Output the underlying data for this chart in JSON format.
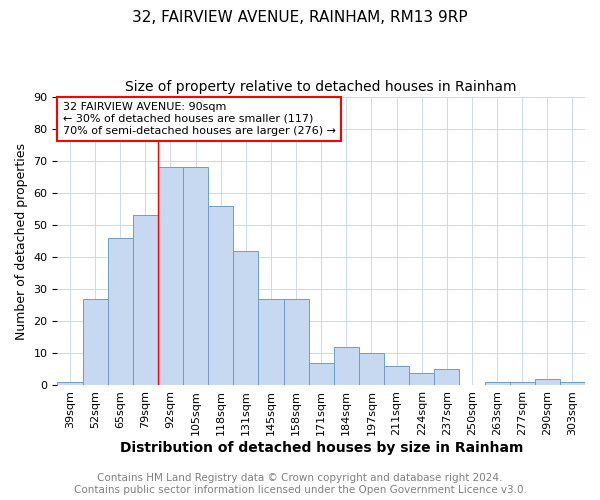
{
  "title": "32, FAIRVIEW AVENUE, RAINHAM, RM13 9RP",
  "subtitle": "Size of property relative to detached houses in Rainham",
  "xlabel": "Distribution of detached houses by size in Rainham",
  "ylabel": "Number of detached properties",
  "categories": [
    "39sqm",
    "52sqm",
    "65sqm",
    "79sqm",
    "92sqm",
    "105sqm",
    "118sqm",
    "131sqm",
    "145sqm",
    "158sqm",
    "171sqm",
    "184sqm",
    "197sqm",
    "211sqm",
    "224sqm",
    "237sqm",
    "250sqm",
    "263sqm",
    "277sqm",
    "290sqm",
    "303sqm"
  ],
  "values": [
    1,
    27,
    46,
    53,
    68,
    68,
    56,
    42,
    27,
    27,
    7,
    12,
    10,
    6,
    4,
    5,
    0,
    1,
    1,
    2,
    1
  ],
  "bar_color": "#c6d9f0",
  "bar_edge_color": "#6b9ec8",
  "red_line_index": 4,
  "annotation_text": "32 FAIRVIEW AVENUE: 90sqm\n← 30% of detached houses are smaller (117)\n70% of semi-detached houses are larger (276) →",
  "annotation_box_color": "white",
  "annotation_box_edge_color": "red",
  "footer_text": "Contains HM Land Registry data © Crown copyright and database right 2024.\nContains public sector information licensed under the Open Government Licence v3.0.",
  "ylim": [
    0,
    90
  ],
  "yticks": [
    0,
    10,
    20,
    30,
    40,
    50,
    60,
    70,
    80,
    90
  ],
  "title_fontsize": 11,
  "subtitle_fontsize": 10,
  "ylabel_fontsize": 9,
  "xlabel_fontsize": 10,
  "tick_fontsize": 8,
  "annotation_fontsize": 8,
  "footer_fontsize": 7.5,
  "background_color": "#ffffff",
  "grid_color": "#ccd8ed"
}
